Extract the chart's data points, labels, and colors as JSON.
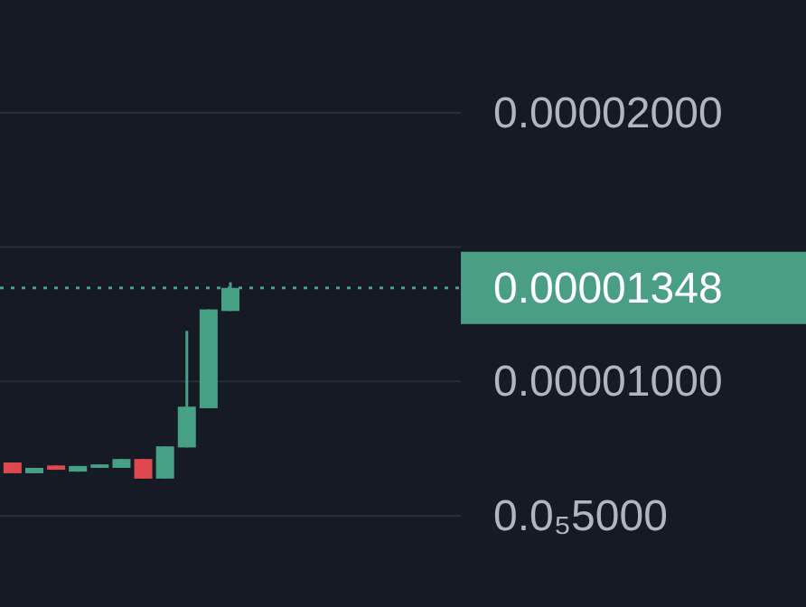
{
  "chart_data": {
    "type": "candlestick",
    "categories": [
      null,
      null,
      null,
      null,
      null,
      null,
      null,
      null,
      null,
      null,
      null,
      null,
      null,
      null,
      null,
      null,
      null,
      null,
      null,
      null,
      null
    ],
    "ohlc": [
      [
        6.98e-06,
        6.98e-06,
        6.58e-06,
        6.58e-06
      ],
      [
        6.58e-06,
        6.78e-06,
        6.58e-06,
        6.78e-06
      ],
      [
        6.87e-06,
        6.87e-06,
        6.71e-06,
        6.71e-06
      ],
      [
        6.64e-06,
        6.85e-06,
        6.64e-06,
        6.85e-06
      ],
      [
        6.78e-06,
        6.91e-06,
        6.78e-06,
        6.91e-06
      ],
      [
        6.78e-06,
        7.11e-06,
        6.78e-06,
        7.11e-06
      ],
      [
        7.11e-06,
        7.11e-06,
        6.38e-06,
        6.38e-06
      ],
      [
        6.38e-06,
        7.58e-06,
        6.38e-06,
        7.58e-06
      ],
      [
        7.54e-06,
        1.188e-05,
        7.54e-06,
        9.06e-06
      ],
      [
        9e-06,
        1.268e-05,
        9e-06,
        1.268e-05
      ],
      [
        1.262e-05,
        1.369e-05,
        1.262e-05,
        1.348e-05
      ],
      null,
      null,
      null,
      null,
      null,
      null,
      null,
      null,
      null,
      null
    ],
    "colors": [
      "#e0484f",
      "#45a085",
      "#e0484f",
      "#45a085",
      "#45a085",
      "#45a085",
      "#e0484f",
      "#45a085",
      "#45a085",
      "#45a085",
      "#45a085",
      null,
      null,
      null,
      null,
      null,
      null,
      null,
      null,
      null,
      null
    ],
    "ylim": [
      1.6e-06,
      2.42e-05
    ],
    "yticks": [
      {
        "value": 5e-06,
        "label": "0.0₅5000"
      },
      {
        "value": 1e-05,
        "label": "0.00001000"
      },
      {
        "value": 1.5e-05,
        "label": null
      },
      {
        "value": 2e-05,
        "label": "0.00002000"
      }
    ],
    "ref_lines": [
      {
        "axis": "y",
        "value": 1.348e-05,
        "label": "0.00001348",
        "color": "#4a9e85",
        "line_style": "dotted"
      }
    ],
    "grid": "y"
  }
}
